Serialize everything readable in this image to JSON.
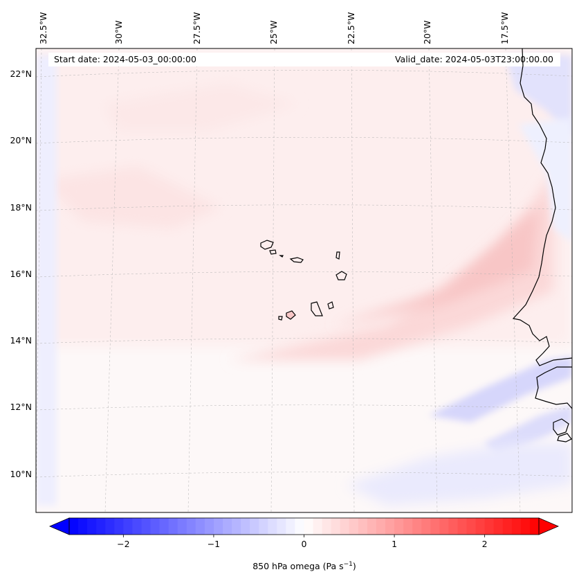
{
  "map": {
    "start_date": "Start date: 2024-05-03_00:00:00",
    "valid_date": "Valid_date: 2024-05-03T23:00:00.00",
    "longitude_labels": [
      "32.5°W",
      "30°W",
      "27.5°W",
      "25°W",
      "22.5°W",
      "20°W",
      "17.5°W"
    ],
    "latitude_labels": [
      "22°N",
      "20°N",
      "18°N",
      "16°N",
      "14°N",
      "12°N",
      "10°N"
    ]
  },
  "colorbar": {
    "label": "850 hPa omega (Pa s",
    "label_exponent": "−1",
    "label_close": ")",
    "ticks": [
      "−2",
      "−1",
      "0",
      "1",
      "2"
    ],
    "tick_values": [
      -2,
      -1,
      0,
      1,
      2
    ],
    "vmin": -2.6,
    "vmax": 2.6,
    "negative_color": "#0000ff",
    "positive_color": "#ff0000",
    "neutral_color": "#ffffff"
  },
  "colors": {
    "coastline": "#000000",
    "gridline": "#b0b0b0",
    "frame": "#000000"
  }
}
